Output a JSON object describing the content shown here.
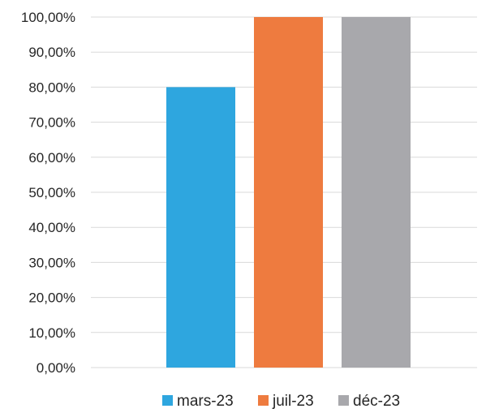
{
  "chart_data": {
    "type": "bar",
    "title": "",
    "xlabel": "",
    "ylabel": "",
    "categories": [
      "mars-23",
      "juil-23",
      "déc-23"
    ],
    "values": [
      0.8,
      1.0,
      1.0
    ],
    "colors": [
      "#2ea6df",
      "#ee7b3f",
      "#a8a8ac"
    ],
    "ylim": [
      0,
      1
    ],
    "yticks": [
      {
        "value": 0.0,
        "label": "0,00%"
      },
      {
        "value": 0.1,
        "label": "10,00%"
      },
      {
        "value": 0.2,
        "label": "20,00%"
      },
      {
        "value": 0.3,
        "label": "30,00%"
      },
      {
        "value": 0.4,
        "label": "40,00%"
      },
      {
        "value": 0.5,
        "label": "50,00%"
      },
      {
        "value": 0.6,
        "label": "60,00%"
      },
      {
        "value": 0.7,
        "label": "70,00%"
      },
      {
        "value": 0.8,
        "label": "80,00%"
      },
      {
        "value": 0.9,
        "label": "90,00%"
      },
      {
        "value": 1.0,
        "label": "100,00%"
      }
    ],
    "grid": true,
    "legend": {
      "position": "bottom",
      "entries": [
        "mars-23",
        "juil-23",
        "déc-23"
      ]
    }
  }
}
